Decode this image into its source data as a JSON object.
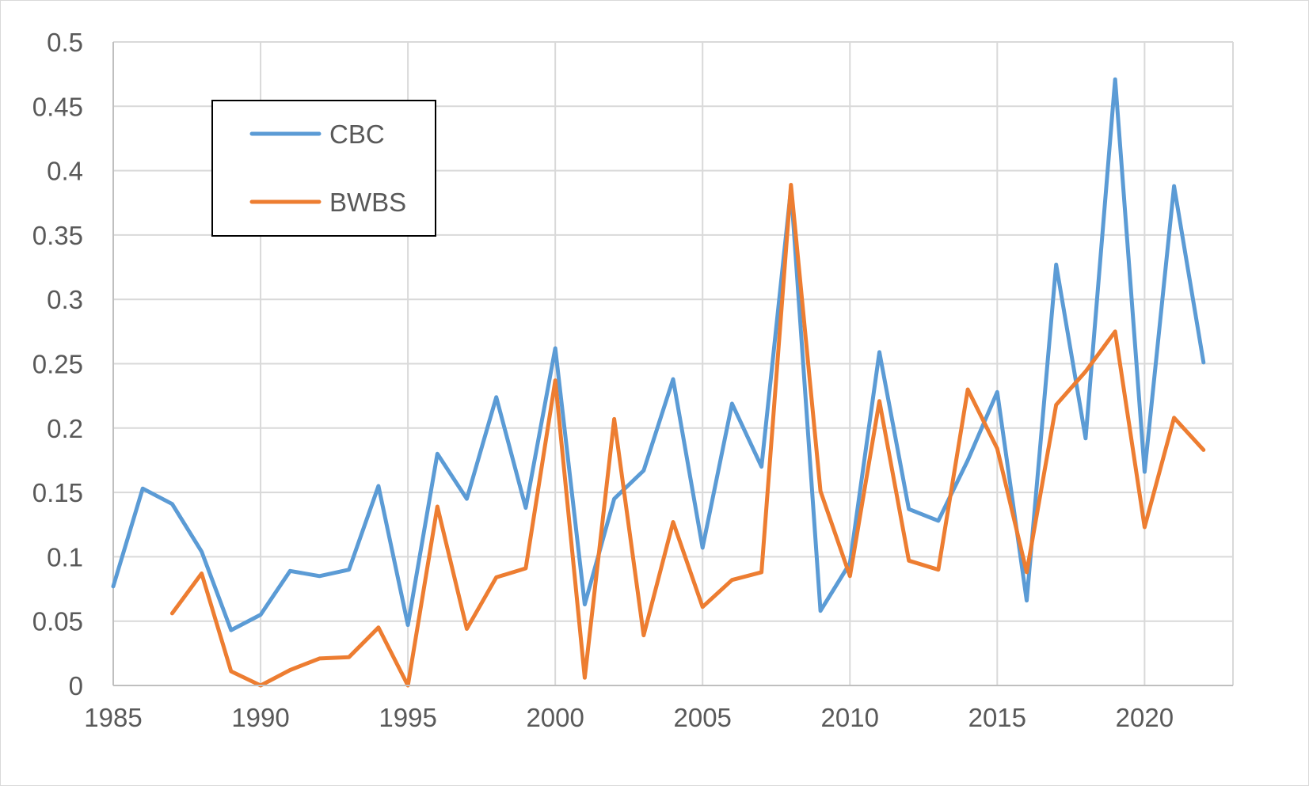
{
  "chart_data": {
    "type": "line",
    "title": "",
    "xlabel": "",
    "ylabel": "",
    "xlim": [
      1985,
      2023
    ],
    "ylim": [
      0,
      0.5
    ],
    "x_ticks": [
      1985,
      1990,
      1995,
      2000,
      2005,
      2010,
      2015,
      2020
    ],
    "x_tick_labels": [
      "1985",
      "1990",
      "1995",
      "2000",
      "2005",
      "2010",
      "2015",
      "2020"
    ],
    "y_ticks": [
      0,
      0.05,
      0.1,
      0.15,
      0.2,
      0.25,
      0.3,
      0.35,
      0.4,
      0.45,
      0.5
    ],
    "y_tick_labels": [
      "0",
      "0.05",
      "0.1",
      "0.15",
      "0.2",
      "0.25",
      "0.3",
      "0.35",
      "0.4",
      "0.45",
      "0.5"
    ],
    "grid": true,
    "legend_position": "top-left",
    "series": [
      {
        "name": "CBC",
        "color": "#5B9BD5",
        "points": [
          [
            1985,
            0.077
          ],
          [
            1986,
            0.153
          ],
          [
            1987,
            0.141
          ],
          [
            1988,
            0.104
          ],
          [
            1989,
            0.043
          ],
          [
            1990,
            0.055
          ],
          [
            1991,
            0.089
          ],
          [
            1992,
            0.085
          ],
          [
            1993,
            0.09
          ],
          [
            1994,
            0.155
          ],
          [
            1995,
            0.047
          ],
          [
            1996,
            0.18
          ],
          [
            1997,
            0.145
          ],
          [
            1998,
            0.224
          ],
          [
            1999,
            0.138
          ],
          [
            2000,
            0.262
          ],
          [
            2001,
            0.063
          ],
          [
            2002,
            0.145
          ],
          [
            2003,
            0.167
          ],
          [
            2004,
            0.238
          ],
          [
            2005,
            0.107
          ],
          [
            2006,
            0.219
          ],
          [
            2007,
            0.17
          ],
          [
            2008,
            0.386
          ],
          [
            2009,
            0.058
          ],
          [
            2010,
            0.095
          ],
          [
            2011,
            0.259
          ],
          [
            2012,
            0.137
          ],
          [
            2013,
            0.128
          ],
          [
            2014,
            0.175
          ],
          [
            2015,
            0.228
          ],
          [
            2016,
            0.066
          ],
          [
            2017,
            0.327
          ],
          [
            2018,
            0.192
          ],
          [
            2019,
            0.471
          ],
          [
            2020,
            0.166
          ],
          [
            2021,
            0.388
          ],
          [
            2022,
            0.251
          ]
        ]
      },
      {
        "name": "BWBS",
        "color": "#ED7D31",
        "points": [
          [
            1987,
            0.056
          ],
          [
            1988,
            0.087
          ],
          [
            1989,
            0.011
          ],
          [
            1990,
            0.0
          ],
          [
            1991,
            0.012
          ],
          [
            1992,
            0.021
          ],
          [
            1993,
            0.022
          ],
          [
            1994,
            0.045
          ],
          [
            1995,
            0.0
          ],
          [
            1996,
            0.139
          ],
          [
            1997,
            0.044
          ],
          [
            1998,
            0.084
          ],
          [
            1999,
            0.091
          ],
          [
            2000,
            0.237
          ],
          [
            2001,
            0.006
          ],
          [
            2002,
            0.207
          ],
          [
            2003,
            0.039
          ],
          [
            2004,
            0.127
          ],
          [
            2005,
            0.061
          ],
          [
            2006,
            0.082
          ],
          [
            2007,
            0.088
          ],
          [
            2008,
            0.389
          ],
          [
            2009,
            0.151
          ],
          [
            2010,
            0.085
          ],
          [
            2011,
            0.221
          ],
          [
            2012,
            0.097
          ],
          [
            2013,
            0.09
          ],
          [
            2014,
            0.23
          ],
          [
            2015,
            0.184
          ],
          [
            2016,
            0.088
          ],
          [
            2017,
            0.218
          ],
          [
            2018,
            0.244
          ],
          [
            2019,
            0.275
          ],
          [
            2020,
            0.123
          ],
          [
            2021,
            0.208
          ],
          [
            2022,
            0.183
          ]
        ]
      }
    ]
  }
}
